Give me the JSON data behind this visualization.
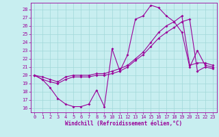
{
  "xlabel": "Windchill (Refroidissement éolien,°C)",
  "bg_color": "#c8eef0",
  "line_color": "#990099",
  "grid_color": "#a0d8d8",
  "xlim": [
    -0.5,
    23.5
  ],
  "ylim": [
    15.5,
    28.8
  ],
  "yticks": [
    16,
    17,
    18,
    19,
    20,
    21,
    22,
    23,
    24,
    25,
    26,
    27,
    28
  ],
  "xticks": [
    0,
    1,
    2,
    3,
    4,
    5,
    6,
    7,
    8,
    9,
    10,
    11,
    12,
    13,
    14,
    15,
    16,
    17,
    18,
    19,
    20,
    21,
    22,
    23
  ],
  "line1_x": [
    0,
    1,
    2,
    3,
    4,
    5,
    6,
    7,
    8,
    9,
    10,
    11,
    12,
    13,
    14,
    15,
    16,
    17,
    18,
    19,
    20,
    21,
    22,
    23
  ],
  "line1_y": [
    20.0,
    19.5,
    18.5,
    17.2,
    16.5,
    16.2,
    16.2,
    16.5,
    18.2,
    16.2,
    23.2,
    20.5,
    22.5,
    26.8,
    27.2,
    28.5,
    28.2,
    27.2,
    26.5,
    25.2,
    21.0,
    23.0,
    21.2,
    21.0
  ],
  "line2_x": [
    0,
    1,
    2,
    3,
    4,
    5,
    6,
    7,
    8,
    9,
    10,
    11,
    12,
    13,
    14,
    15,
    16,
    17,
    18,
    19,
    20,
    21,
    22,
    23
  ],
  "line2_y": [
    20.0,
    19.5,
    19.2,
    19.0,
    19.5,
    19.8,
    19.8,
    19.8,
    20.0,
    20.0,
    20.2,
    20.5,
    21.0,
    21.8,
    22.5,
    23.5,
    24.5,
    25.2,
    25.8,
    26.5,
    26.8,
    20.5,
    21.0,
    20.8
  ],
  "line3_x": [
    0,
    1,
    2,
    3,
    4,
    5,
    6,
    7,
    8,
    9,
    10,
    11,
    12,
    13,
    14,
    15,
    16,
    17,
    18,
    19,
    20,
    21,
    22,
    23
  ],
  "line3_y": [
    20.0,
    19.8,
    19.5,
    19.2,
    19.8,
    20.0,
    20.0,
    20.0,
    20.2,
    20.2,
    20.5,
    20.8,
    21.2,
    22.0,
    22.8,
    24.0,
    25.2,
    26.0,
    26.5,
    27.2,
    21.2,
    21.5,
    21.5,
    21.2
  ],
  "marker": "D",
  "markersize": 2.0,
  "linewidth": 0.8
}
